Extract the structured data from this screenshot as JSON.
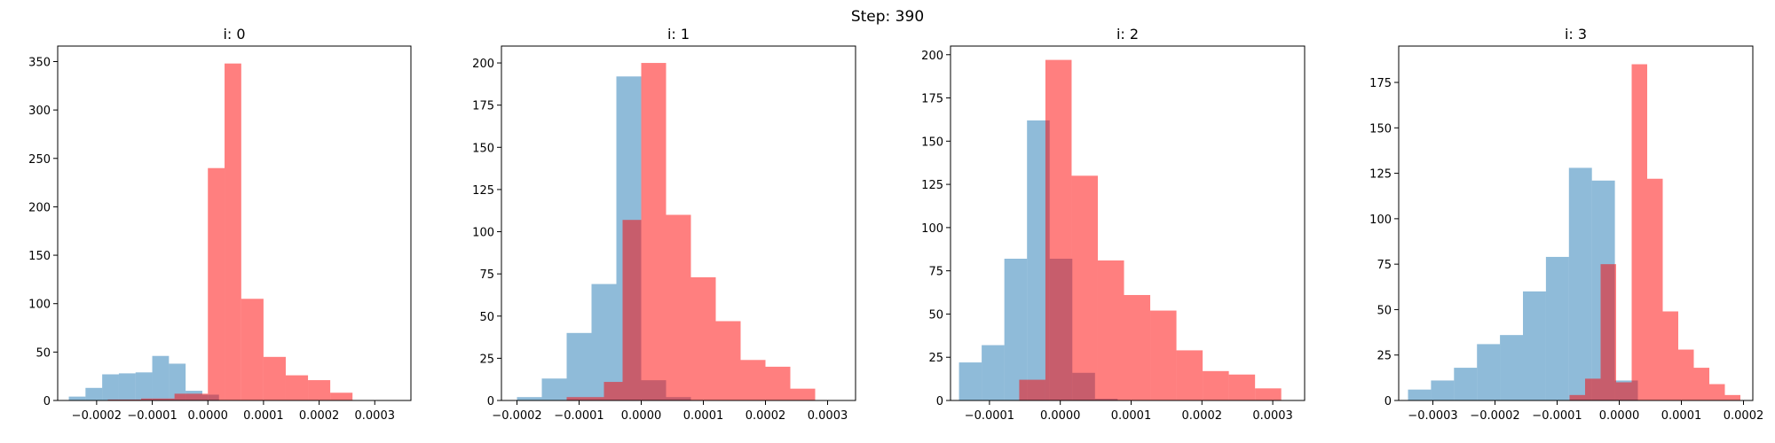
{
  "figure": {
    "suptitle": "Step: 390"
  },
  "colors": {
    "blue": "#1f77b4",
    "red": "#ff0000",
    "blue_alpha": 0.5,
    "red_alpha": 0.5
  },
  "chart_data": [
    {
      "type": "histogram",
      "title": "i: 0",
      "xlim": [
        -0.00027,
        0.000365
      ],
      "ylim": [
        0,
        366
      ],
      "xticks": [
        -0.0002,
        -0.0001,
        0.0,
        0.0001,
        0.0002,
        0.0003
      ],
      "xtick_labels": [
        "−0.0002",
        "−0.0001",
        "0.0000",
        "0.0001",
        "0.0002",
        "0.0003"
      ],
      "yticks": [
        0,
        50,
        100,
        150,
        200,
        250,
        300,
        350
      ],
      "series": [
        {
          "color": "blue",
          "edges": [
            -0.00025,
            -0.00022,
            -0.00019,
            -0.00016,
            -0.00013,
            -0.0001,
            -7e-05,
            -4e-05,
            -1e-05,
            2e-05,
            5e-05,
            8e-05
          ],
          "counts": [
            4,
            13,
            27,
            28,
            29,
            46,
            38,
            10,
            6,
            0,
            0
          ]
        },
        {
          "color": "red",
          "edges": [
            -0.00018,
            -0.00012,
            -6e-05,
            0.0,
            3e-05,
            6e-05,
            0.0001,
            0.00014,
            0.00018,
            0.00022,
            0.00026,
            0.0003,
            0.00034
          ],
          "counts": [
            1,
            2,
            7,
            240,
            348,
            105,
            45,
            26,
            21,
            8,
            0,
            0
          ]
        }
      ]
    },
    {
      "type": "histogram",
      "title": "i: 1",
      "xlim": [
        -0.000225,
        0.000345
      ],
      "ylim": [
        0,
        210
      ],
      "xticks": [
        -0.0002,
        -0.0001,
        0.0,
        0.0001,
        0.0002,
        0.0003
      ],
      "xtick_labels": [
        "−0.0002",
        "−0.0001",
        "0.0000",
        "0.0001",
        "0.0002",
        "0.0003"
      ],
      "yticks": [
        0,
        25,
        50,
        75,
        100,
        125,
        150,
        175,
        200
      ],
      "series": [
        {
          "color": "blue",
          "edges": [
            -0.0002,
            -0.00016,
            -0.00012,
            -8e-05,
            -4e-05,
            0.0,
            4e-05,
            8e-05
          ],
          "counts": [
            2,
            13,
            40,
            69,
            192,
            12,
            2
          ]
        },
        {
          "color": "red",
          "edges": [
            -0.00012,
            -6e-05,
            -3e-05,
            0.0,
            4e-05,
            8e-05,
            0.00012,
            0.00016,
            0.0002,
            0.00024,
            0.00028,
            0.00032
          ],
          "counts": [
            2,
            11,
            107,
            200,
            110,
            73,
            47,
            24,
            20,
            7,
            0
          ]
        }
      ]
    },
    {
      "type": "histogram",
      "title": "i: 2",
      "xlim": [
        -0.000155,
        0.000345
      ],
      "ylim": [
        0,
        205
      ],
      "xticks": [
        -0.0001,
        0.0,
        0.0001,
        0.0002,
        0.0003
      ],
      "xtick_labels": [
        "−0.0001",
        "0.0000",
        "0.0001",
        "0.0002",
        "0.0003"
      ],
      "yticks": [
        0,
        25,
        50,
        75,
        100,
        125,
        150,
        175,
        200
      ],
      "series": [
        {
          "color": "blue",
          "edges": [
            -0.000143,
            -0.000111,
            -7.9e-05,
            -4.7e-05,
            -1.5e-05,
            1.7e-05,
            4.9e-05,
            8.1e-05
          ],
          "counts": [
            22,
            32,
            82,
            162,
            82,
            16,
            1
          ]
        },
        {
          "color": "red",
          "edges": [
            -5.8e-05,
            -2.1e-05,
            1.6e-05,
            5.3e-05,
            9e-05,
            0.000127,
            0.000164,
            0.000201,
            0.000238,
            0.000275,
            0.000312
          ],
          "counts": [
            12,
            197,
            130,
            81,
            61,
            52,
            29,
            17,
            15,
            7
          ]
        }
      ]
    },
    {
      "type": "histogram",
      "title": "i: 3",
      "xlim": [
        -0.000355,
        0.000215
      ],
      "ylim": [
        0,
        195
      ],
      "xticks": [
        -0.0003,
        -0.0002,
        -0.0001,
        0.0,
        0.0001,
        0.0002
      ],
      "xtick_labels": [
        "−0.0003",
        "−0.0002",
        "−0.0001",
        "0.0000",
        "0.0001",
        "0.0002"
      ],
      "yticks": [
        0,
        25,
        50,
        75,
        100,
        125,
        150,
        175
      ],
      "series": [
        {
          "color": "blue",
          "edges": [
            -0.00034,
            -0.000303,
            -0.000266,
            -0.000229,
            -0.000192,
            -0.000155,
            -0.000118,
            -8.1e-05,
            -4.4e-05,
            -7e-06,
            3e-05
          ],
          "counts": [
            6,
            11,
            18,
            31,
            36,
            60,
            79,
            128,
            121,
            11
          ]
        },
        {
          "color": "red",
          "edges": [
            -8e-05,
            -5.5e-05,
            -3e-05,
            -5e-06,
            2e-05,
            4.5e-05,
            7e-05,
            9.5e-05,
            0.00012,
            0.000145,
            0.00017,
            0.000195
          ],
          "counts": [
            3,
            12,
            75,
            10,
            185,
            122,
            49,
            28,
            18,
            9,
            3
          ]
        }
      ]
    }
  ]
}
